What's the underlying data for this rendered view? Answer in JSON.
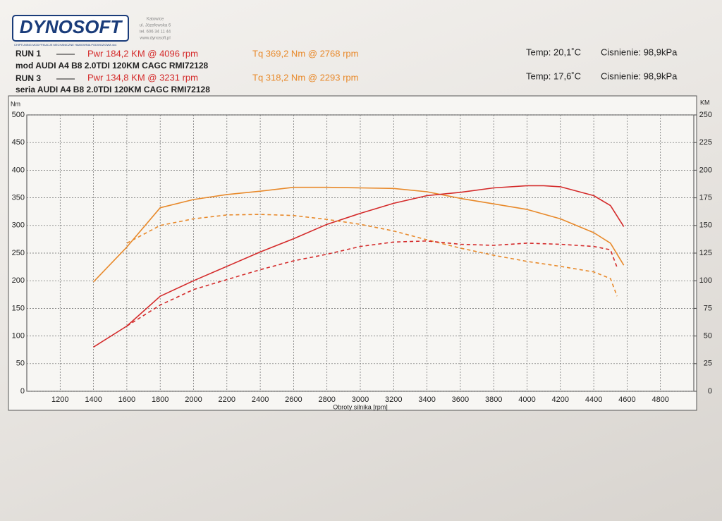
{
  "chart_data": {
    "type": "line",
    "logo": "DYNOSOFT",
    "address": [
      "Katowice",
      "ul. Józefowska 6",
      "tel. 606 34 11 44",
      "www.dynosoft.pl"
    ],
    "tagline": "CHIPTUNING   MODYFIKACJE MECHANICZNE   HAMOWNIA PODWOZIOWA 4x4",
    "runs": [
      {
        "label": "RUN 1",
        "pwr": "Pwr  184,2 KM @ 4096 rpm",
        "tq": "Tq 369,2 Nm @ 2768 rpm",
        "car": "mod AUDI A4 B8 2.0TDI 120KM CAGC RMI72128",
        "temp": "Temp: 20,1˚C",
        "pressure": "Cisnienie: 98,9kPa"
      },
      {
        "label": "RUN 3",
        "pwr": "Pwr  134,8 KM @ 3231 rpm",
        "tq": "Tq 318,2 Nm @ 2293 rpm",
        "car": "seria AUDI A4 B8 2.0TDI 120KM CAGC RMI72128",
        "temp": "Temp: 17,6˚C",
        "pressure": "Cisnienie: 98,9kPa"
      }
    ],
    "x_label": "Obroty silnika [rpm]",
    "y_label": "Nm",
    "y2_label": "KM",
    "xlim": [
      1000,
      5000
    ],
    "xticks": [
      1200,
      1400,
      1600,
      1800,
      2000,
      2200,
      2400,
      2600,
      2800,
      3000,
      3200,
      3400,
      3600,
      3800,
      4000,
      4200,
      4400,
      4600,
      4800
    ],
    "ylim": [
      0,
      500
    ],
    "yticks": [
      0,
      50,
      100,
      150,
      200,
      250,
      300,
      350,
      400,
      450,
      500
    ],
    "y2lim": [
      0,
      250
    ],
    "y2ticks": [
      0,
      25,
      50,
      75,
      100,
      125,
      150,
      175,
      200,
      225,
      250
    ],
    "grid": true,
    "series": [
      {
        "color": "#e8892a",
        "dashed": false,
        "x": [
          1400,
          1600,
          1800,
          2000,
          2200,
          2400,
          2600,
          2800,
          3000,
          3200,
          3400,
          3600,
          3800,
          4000,
          4200,
          4400,
          4500,
          4580
        ],
        "values": [
          198,
          261,
          332,
          347,
          356,
          362,
          369,
          369,
          368,
          367,
          361,
          349,
          339,
          329,
          312,
          287,
          268,
          228
        ]
      },
      {
        "color": "#d42a2a",
        "dashed": false,
        "axis": "y2",
        "x": [
          1400,
          1600,
          1800,
          2000,
          2200,
          2400,
          2600,
          2800,
          3000,
          3200,
          3400,
          3600,
          3800,
          4000,
          4100,
          4200,
          4400,
          4500,
          4580
        ],
        "values": [
          40,
          59,
          86,
          100,
          113,
          126,
          138,
          151,
          161,
          170,
          177,
          180,
          184,
          186,
          186,
          185,
          177,
          168,
          149
        ]
      },
      {
        "color": "#e8892a",
        "dashed": true,
        "x": [
          1600,
          1800,
          2000,
          2200,
          2400,
          2600,
          2800,
          3000,
          3200,
          3400,
          3600,
          3800,
          4000,
          4200,
          4400,
          4500,
          4540
        ],
        "values": [
          268,
          300,
          312,
          319,
          320,
          318,
          311,
          302,
          290,
          274,
          259,
          246,
          235,
          226,
          216,
          204,
          172
        ]
      },
      {
        "color": "#d42a2a",
        "dashed": true,
        "axis": "y2",
        "x": [
          1600,
          1800,
          2000,
          2200,
          2400,
          2600,
          2800,
          3000,
          3200,
          3400,
          3600,
          3800,
          4000,
          4200,
          4400,
          4500,
          4540
        ],
        "values": [
          59,
          78,
          92,
          101,
          110,
          118,
          124,
          131,
          135,
          136,
          133,
          132,
          134,
          133,
          131,
          128,
          112
        ]
      }
    ]
  }
}
